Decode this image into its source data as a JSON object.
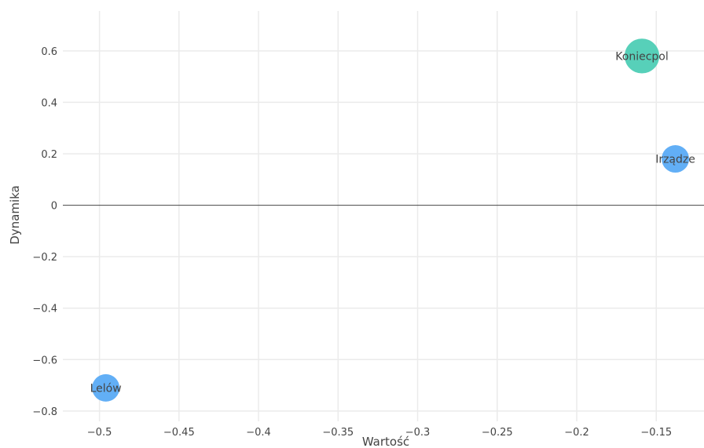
{
  "chart_data": {
    "type": "scatter",
    "title": "",
    "xlabel": "Wartość",
    "ylabel": "Dynamika",
    "xlim": [
      -0.523,
      -0.12
    ],
    "ylim": [
      -0.84,
      0.755
    ],
    "xticks": [
      -0.5,
      -0.45,
      -0.4,
      -0.35,
      -0.3,
      -0.25,
      -0.2,
      -0.15
    ],
    "xtick_labels": [
      "−0.5",
      "−0.45",
      "−0.4",
      "−0.35",
      "−0.3",
      "−0.25",
      "−0.2",
      "−0.15"
    ],
    "yticks": [
      0.6,
      0.4,
      0.2,
      0,
      -0.2,
      -0.4,
      -0.6,
      -0.8
    ],
    "ytick_labels": [
      "0.6",
      "0.4",
      "0.2",
      "0",
      "−0.2",
      "−0.4",
      "−0.6",
      "−0.8"
    ],
    "grid": true,
    "zero_line": true,
    "points": [
      {
        "label": "Koniecpol",
        "x": -0.159,
        "y": 0.58,
        "size": 1.6,
        "color": "#4ecdb5"
      },
      {
        "label": "Irządze",
        "x": -0.138,
        "y": 0.18,
        "size": 1.0,
        "color": "#5aabf5"
      },
      {
        "label": "Lelów",
        "x": -0.496,
        "y": -0.71,
        "size": 1.0,
        "color": "#5aabf5"
      }
    ]
  }
}
